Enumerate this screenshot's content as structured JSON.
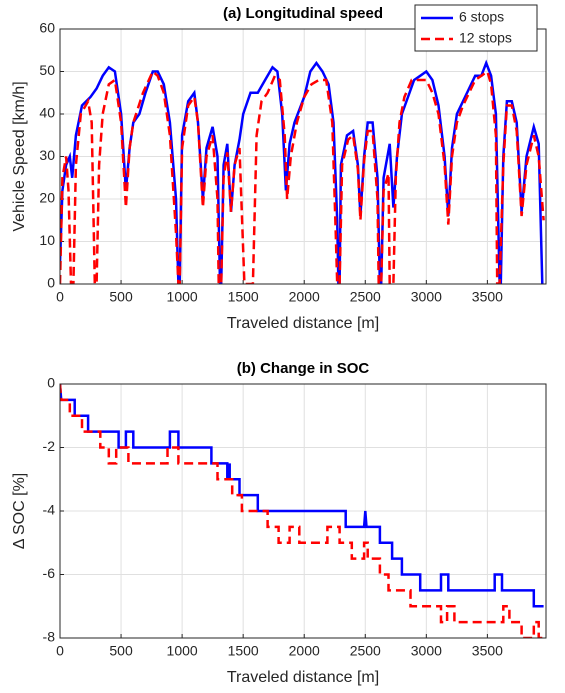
{
  "chart_data": [
    {
      "type": "line",
      "title": "(a) Longitudinal speed",
      "xlabel": "Traveled distance [m]",
      "ylabel": "Vehicle Speed [km/h]",
      "xlim": [
        0,
        3980
      ],
      "xticks": [
        0,
        500,
        1000,
        1500,
        2000,
        2500,
        3000,
        3500
      ],
      "ylim": [
        0,
        60
      ],
      "yticks": [
        0,
        10,
        20,
        30,
        40,
        50,
        60
      ],
      "grid": true,
      "legend": "upper right",
      "series": [
        {
          "name": "6 stops",
          "color": "#0000ff",
          "linestyle": "solid",
          "x": [
            0,
            20,
            50,
            80,
            100,
            130,
            180,
            250,
            300,
            350,
            400,
            450,
            500,
            540,
            570,
            600,
            650,
            700,
            760,
            800,
            850,
            900,
            950,
            970,
            980,
            1000,
            1050,
            1100,
            1130,
            1170,
            1200,
            1250,
            1290,
            1310,
            1320,
            1340,
            1370,
            1400,
            1430,
            1470,
            1500,
            1560,
            1620,
            1680,
            1740,
            1780,
            1820,
            1850,
            1880,
            1920,
            2000,
            2050,
            2100,
            2150,
            2200,
            2240,
            2270,
            2280,
            2290,
            2300,
            2350,
            2400,
            2440,
            2460,
            2490,
            2520,
            2560,
            2600,
            2620,
            2630,
            2650,
            2700,
            2730,
            2760,
            2800,
            2850,
            2900,
            2950,
            3000,
            3050,
            3100,
            3150,
            3180,
            3210,
            3250,
            3300,
            3350,
            3400,
            3450,
            3490,
            3530,
            3570,
            3600,
            3610,
            3630,
            3660,
            3700,
            3740,
            3780,
            3820,
            3880,
            3920,
            3950
          ],
          "values": [
            5,
            22,
            28,
            30,
            25,
            35,
            42,
            44,
            46,
            49,
            51,
            50,
            40,
            22,
            32,
            38,
            40,
            45,
            50,
            50,
            47,
            38,
            20,
            0,
            0,
            35,
            43,
            45,
            38,
            20,
            32,
            37,
            30,
            0,
            0,
            28,
            33,
            17,
            28,
            34,
            40,
            45,
            45,
            48,
            51,
            50,
            40,
            22,
            33,
            38,
            44,
            50,
            52,
            50,
            47,
            38,
            15,
            0,
            0,
            28,
            35,
            36,
            28,
            16,
            30,
            38,
            38,
            25,
            0,
            0,
            25,
            33,
            18,
            30,
            40,
            44,
            48,
            49,
            50,
            48,
            42,
            30,
            16,
            32,
            40,
            43,
            46,
            49,
            49,
            52,
            49,
            40,
            0,
            0,
            30,
            43,
            43,
            38,
            17,
            30,
            37,
            33,
            0
          ]
        },
        {
          "name": "12 stops",
          "color": "#ff0000",
          "linestyle": "dashed",
          "x": [
            0,
            20,
            50,
            70,
            90,
            110,
            130,
            170,
            230,
            260,
            285,
            300,
            320,
            350,
            400,
            450,
            500,
            540,
            570,
            600,
            680,
            760,
            800,
            850,
            900,
            950,
            970,
            980,
            1000,
            1050,
            1100,
            1130,
            1170,
            1200,
            1250,
            1290,
            1300,
            1320,
            1340,
            1370,
            1400,
            1430,
            1470,
            1510,
            1580,
            1610,
            1650,
            1700,
            1760,
            1800,
            1840,
            1860,
            1890,
            1940,
            2000,
            2060,
            2120,
            2180,
            2230,
            2260,
            2270,
            2290,
            2310,
            2360,
            2400,
            2440,
            2460,
            2490,
            2520,
            2560,
            2600,
            2610,
            2630,
            2650,
            2690,
            2700,
            2730,
            2750,
            2780,
            2820,
            2880,
            2950,
            3000,
            3050,
            3100,
            3150,
            3180,
            3210,
            3250,
            3300,
            3350,
            3400,
            3450,
            3500,
            3530,
            3570,
            3580,
            3600,
            3630,
            3660,
            3700,
            3740,
            3780,
            3820,
            3880,
            3920,
            3960
          ],
          "values": [
            0,
            25,
            30,
            22,
            0,
            0,
            28,
            40,
            43,
            38,
            0,
            0,
            28,
            40,
            47,
            48,
            38,
            18,
            32,
            38,
            45,
            50,
            49,
            45,
            35,
            12,
            0,
            0,
            32,
            42,
            44,
            38,
            18,
            30,
            35,
            20,
            0,
            0,
            25,
            31,
            17,
            28,
            32,
            0,
            0,
            35,
            43,
            45,
            49,
            48,
            35,
            20,
            30,
            38,
            44,
            47,
            48,
            48,
            38,
            10,
            0,
            0,
            28,
            34,
            35,
            27,
            15,
            29,
            36,
            36,
            20,
            0,
            0,
            22,
            26,
            0,
            0,
            25,
            38,
            44,
            48,
            48,
            48,
            45,
            40,
            28,
            14,
            30,
            38,
            42,
            45,
            48,
            49,
            50,
            47,
            35,
            0,
            0,
            28,
            42,
            42,
            36,
            16,
            28,
            35,
            30,
            15
          ]
        }
      ]
    },
    {
      "type": "line",
      "title": "(b) Change in SOC",
      "xlabel": "Traveled distance [m]",
      "ylabel": "Δ SOC [%]",
      "xlim": [
        0,
        3980
      ],
      "xticks": [
        0,
        500,
        1000,
        1500,
        2000,
        2500,
        3000,
        3500
      ],
      "ylim": [
        -8,
        0
      ],
      "yticks": [
        -8,
        -6,
        -4,
        -2,
        0
      ],
      "grid": true,
      "legend": false,
      "series": [
        {
          "color": "#0000ff",
          "linestyle": "solid",
          "x": [
            0,
            10,
            120,
            120,
            230,
            230,
            480,
            480,
            540,
            540,
            600,
            600,
            900,
            900,
            970,
            970,
            1240,
            1240,
            1370,
            1370,
            1390,
            1390,
            1470,
            1470,
            1620,
            1620,
            2340,
            2340,
            2490,
            2500,
            2510,
            2620,
            2620,
            2720,
            2720,
            2800,
            2800,
            2950,
            2950,
            3120,
            3120,
            3180,
            3180,
            3560,
            3560,
            3620,
            3620,
            3880,
            3880,
            3960
          ],
          "values": [
            0,
            -0.5,
            -0.5,
            -1,
            -1,
            -1.5,
            -1.5,
            -2,
            -2,
            -1.5,
            -1.5,
            -2,
            -2,
            -1.5,
            -1.5,
            -2,
            -2,
            -2.5,
            -2.5,
            -3,
            -2.5,
            -3,
            -3,
            -3.5,
            -3.5,
            -4,
            -4,
            -4.5,
            -4.5,
            -4,
            -4.5,
            -4.5,
            -5,
            -5,
            -5.5,
            -5.5,
            -6,
            -6,
            -6.5,
            -6.5,
            -6,
            -6,
            -6.5,
            -6.5,
            -6,
            -6,
            -6.5,
            -6.5,
            -7,
            -7
          ]
        },
        {
          "color": "#ff0000",
          "linestyle": "dashed",
          "x": [
            0,
            10,
            80,
            80,
            180,
            180,
            330,
            330,
            400,
            400,
            460,
            460,
            560,
            560,
            880,
            880,
            970,
            970,
            1290,
            1290,
            1410,
            1410,
            1490,
            1490,
            1700,
            1700,
            1790,
            1790,
            1880,
            1880,
            1960,
            1960,
            2190,
            2190,
            2290,
            2290,
            2390,
            2390,
            2490,
            2490,
            2520,
            2520,
            2620,
            2620,
            2690,
            2690,
            2870,
            2870,
            3120,
            3120,
            3170,
            3170,
            3230,
            3230,
            3630,
            3630,
            3680,
            3680,
            3780,
            3780,
            3880,
            3880,
            3920,
            3920,
            3950
          ],
          "values": [
            0,
            -0.5,
            -0.5,
            -1,
            -1,
            -1.5,
            -1.5,
            -2,
            -2,
            -2.5,
            -2.5,
            -2,
            -2,
            -2.5,
            -2.5,
            -2,
            -2,
            -2.5,
            -2.5,
            -3,
            -3,
            -3.5,
            -3.5,
            -4,
            -4,
            -4.5,
            -4.5,
            -5,
            -5,
            -4.5,
            -4.5,
            -5,
            -5,
            -4.5,
            -4.5,
            -5,
            -5,
            -5.5,
            -5.5,
            -5,
            -5,
            -5.5,
            -5.5,
            -6,
            -6,
            -6.5,
            -6.5,
            -7,
            -7,
            -7.5,
            -7.5,
            -7,
            -7,
            -7.5,
            -7.5,
            -7,
            -7,
            -7.5,
            -7.5,
            -8,
            -8,
            -7.5,
            -7.5,
            -8,
            -8
          ]
        }
      ]
    }
  ]
}
